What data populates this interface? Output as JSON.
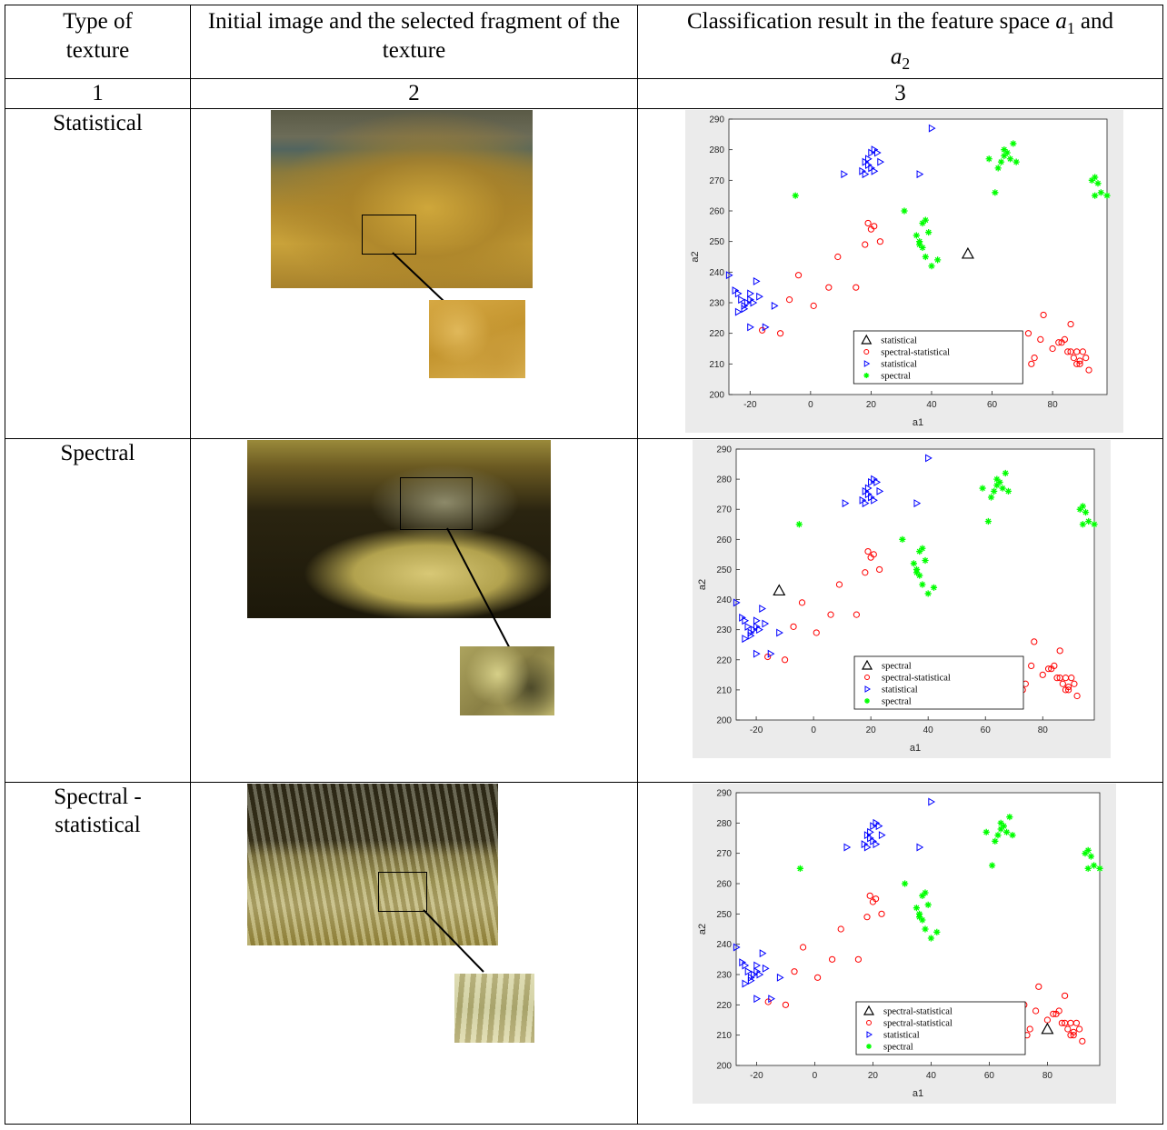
{
  "header": {
    "col1": "Type of texture",
    "col2": "Initial image and the selected fragment of the texture",
    "col3_prefix": "Classification result in the feature space ",
    "col3_a1": "a",
    "col3_a1_sub": "1",
    "col3_and": " and ",
    "col3_a2": "a",
    "col3_a2_sub": "2"
  },
  "column_numbers": [
    "1",
    "2",
    "3"
  ],
  "rows": [
    {
      "label": "Statistical"
    },
    {
      "label": "Spectral"
    },
    {
      "label": "Spectral - statistical"
    }
  ],
  "chart_data": [
    {
      "type": "scatter",
      "xlabel": "a1",
      "ylabel": "a2",
      "xlim": [
        -27,
        98
      ],
      "ylim": [
        200,
        290
      ],
      "xticks": [
        -20,
        0,
        20,
        40,
        60,
        80
      ],
      "yticks": [
        200,
        210,
        220,
        230,
        240,
        250,
        260,
        270,
        280,
        290
      ],
      "legend_position": "bottom-center",
      "query_point": {
        "label": "statistical",
        "x": 52,
        "y": 246
      },
      "series": [
        {
          "name": "spectral-statistical",
          "color": "#ff0000",
          "marker": "circle",
          "x": [
            -16,
            -10,
            -7,
            -4,
            1,
            6,
            9,
            15,
            18,
            19,
            20,
            21,
            23,
            77,
            80,
            82,
            83,
            84,
            85,
            86,
            86,
            87,
            88,
            88,
            89,
            89,
            90,
            91,
            92,
            72,
            74,
            73,
            76,
            67
          ],
          "y": [
            221,
            220,
            231,
            239,
            229,
            235,
            245,
            235,
            249,
            256,
            254,
            255,
            250,
            226,
            215,
            217,
            217,
            218,
            214,
            223,
            214,
            212,
            210,
            214,
            211,
            210,
            214,
            212,
            208,
            220,
            212,
            210,
            218,
            217
          ]
        },
        {
          "name": "statistical",
          "color": "#0000ff",
          "marker": "triangle-right",
          "x": [
            -27,
            -25,
            -24,
            -23,
            -24,
            -22,
            -21,
            -20,
            -22,
            -19,
            -20,
            -18,
            -17,
            -20,
            -15,
            -12,
            11,
            17,
            18,
            19,
            20,
            21,
            22,
            19,
            18,
            20,
            21,
            23,
            36,
            40
          ],
          "y": [
            239,
            234,
            233,
            231,
            227,
            228,
            230,
            231,
            229,
            230,
            233,
            237,
            232,
            222,
            222,
            229,
            272,
            273,
            276,
            277,
            279,
            280,
            279,
            275,
            272,
            274,
            273,
            276,
            272,
            287
          ]
        },
        {
          "name": "spectral",
          "color": "#00ff00",
          "marker": "star",
          "x": [
            -5,
            31,
            35,
            36,
            37,
            38,
            39,
            37,
            38,
            36,
            40,
            42,
            59,
            61,
            63,
            64,
            64,
            65,
            66,
            67,
            68,
            62,
            93,
            94,
            95,
            94,
            96,
            98
          ],
          "y": [
            265,
            260,
            252,
            250,
            248,
            245,
            253,
            256,
            257,
            249,
            242,
            244,
            277,
            266,
            276,
            278,
            280,
            279,
            277,
            282,
            276,
            274,
            270,
            271,
            269,
            265,
            266,
            265
          ]
        }
      ]
    },
    {
      "type": "scatter",
      "xlabel": "a1",
      "ylabel": "a2",
      "xlim": [
        -27,
        98
      ],
      "ylim": [
        200,
        290
      ],
      "xticks": [
        -20,
        0,
        20,
        40,
        60,
        80
      ],
      "yticks": [
        200,
        210,
        220,
        230,
        240,
        250,
        260,
        270,
        280,
        290
      ],
      "legend_position": "bottom-center",
      "query_point": {
        "label": "spectral",
        "x": -12,
        "y": 243
      },
      "series_same_as_panel": 0
    },
    {
      "type": "scatter",
      "xlabel": "a1",
      "ylabel": "a2",
      "xlim": [
        -27,
        98
      ],
      "ylim": [
        200,
        290
      ],
      "xticks": [
        -20,
        0,
        20,
        40,
        60,
        80
      ],
      "yticks": [
        200,
        210,
        220,
        230,
        240,
        250,
        260,
        270,
        280,
        290
      ],
      "legend_position": "bottom-center",
      "query_point": {
        "label": "spectral-statistical",
        "x": 80,
        "y": 212
      },
      "series_same_as_panel": 0
    }
  ],
  "legend_entries": [
    "spectral-statistical",
    "statistical",
    "spectral"
  ]
}
